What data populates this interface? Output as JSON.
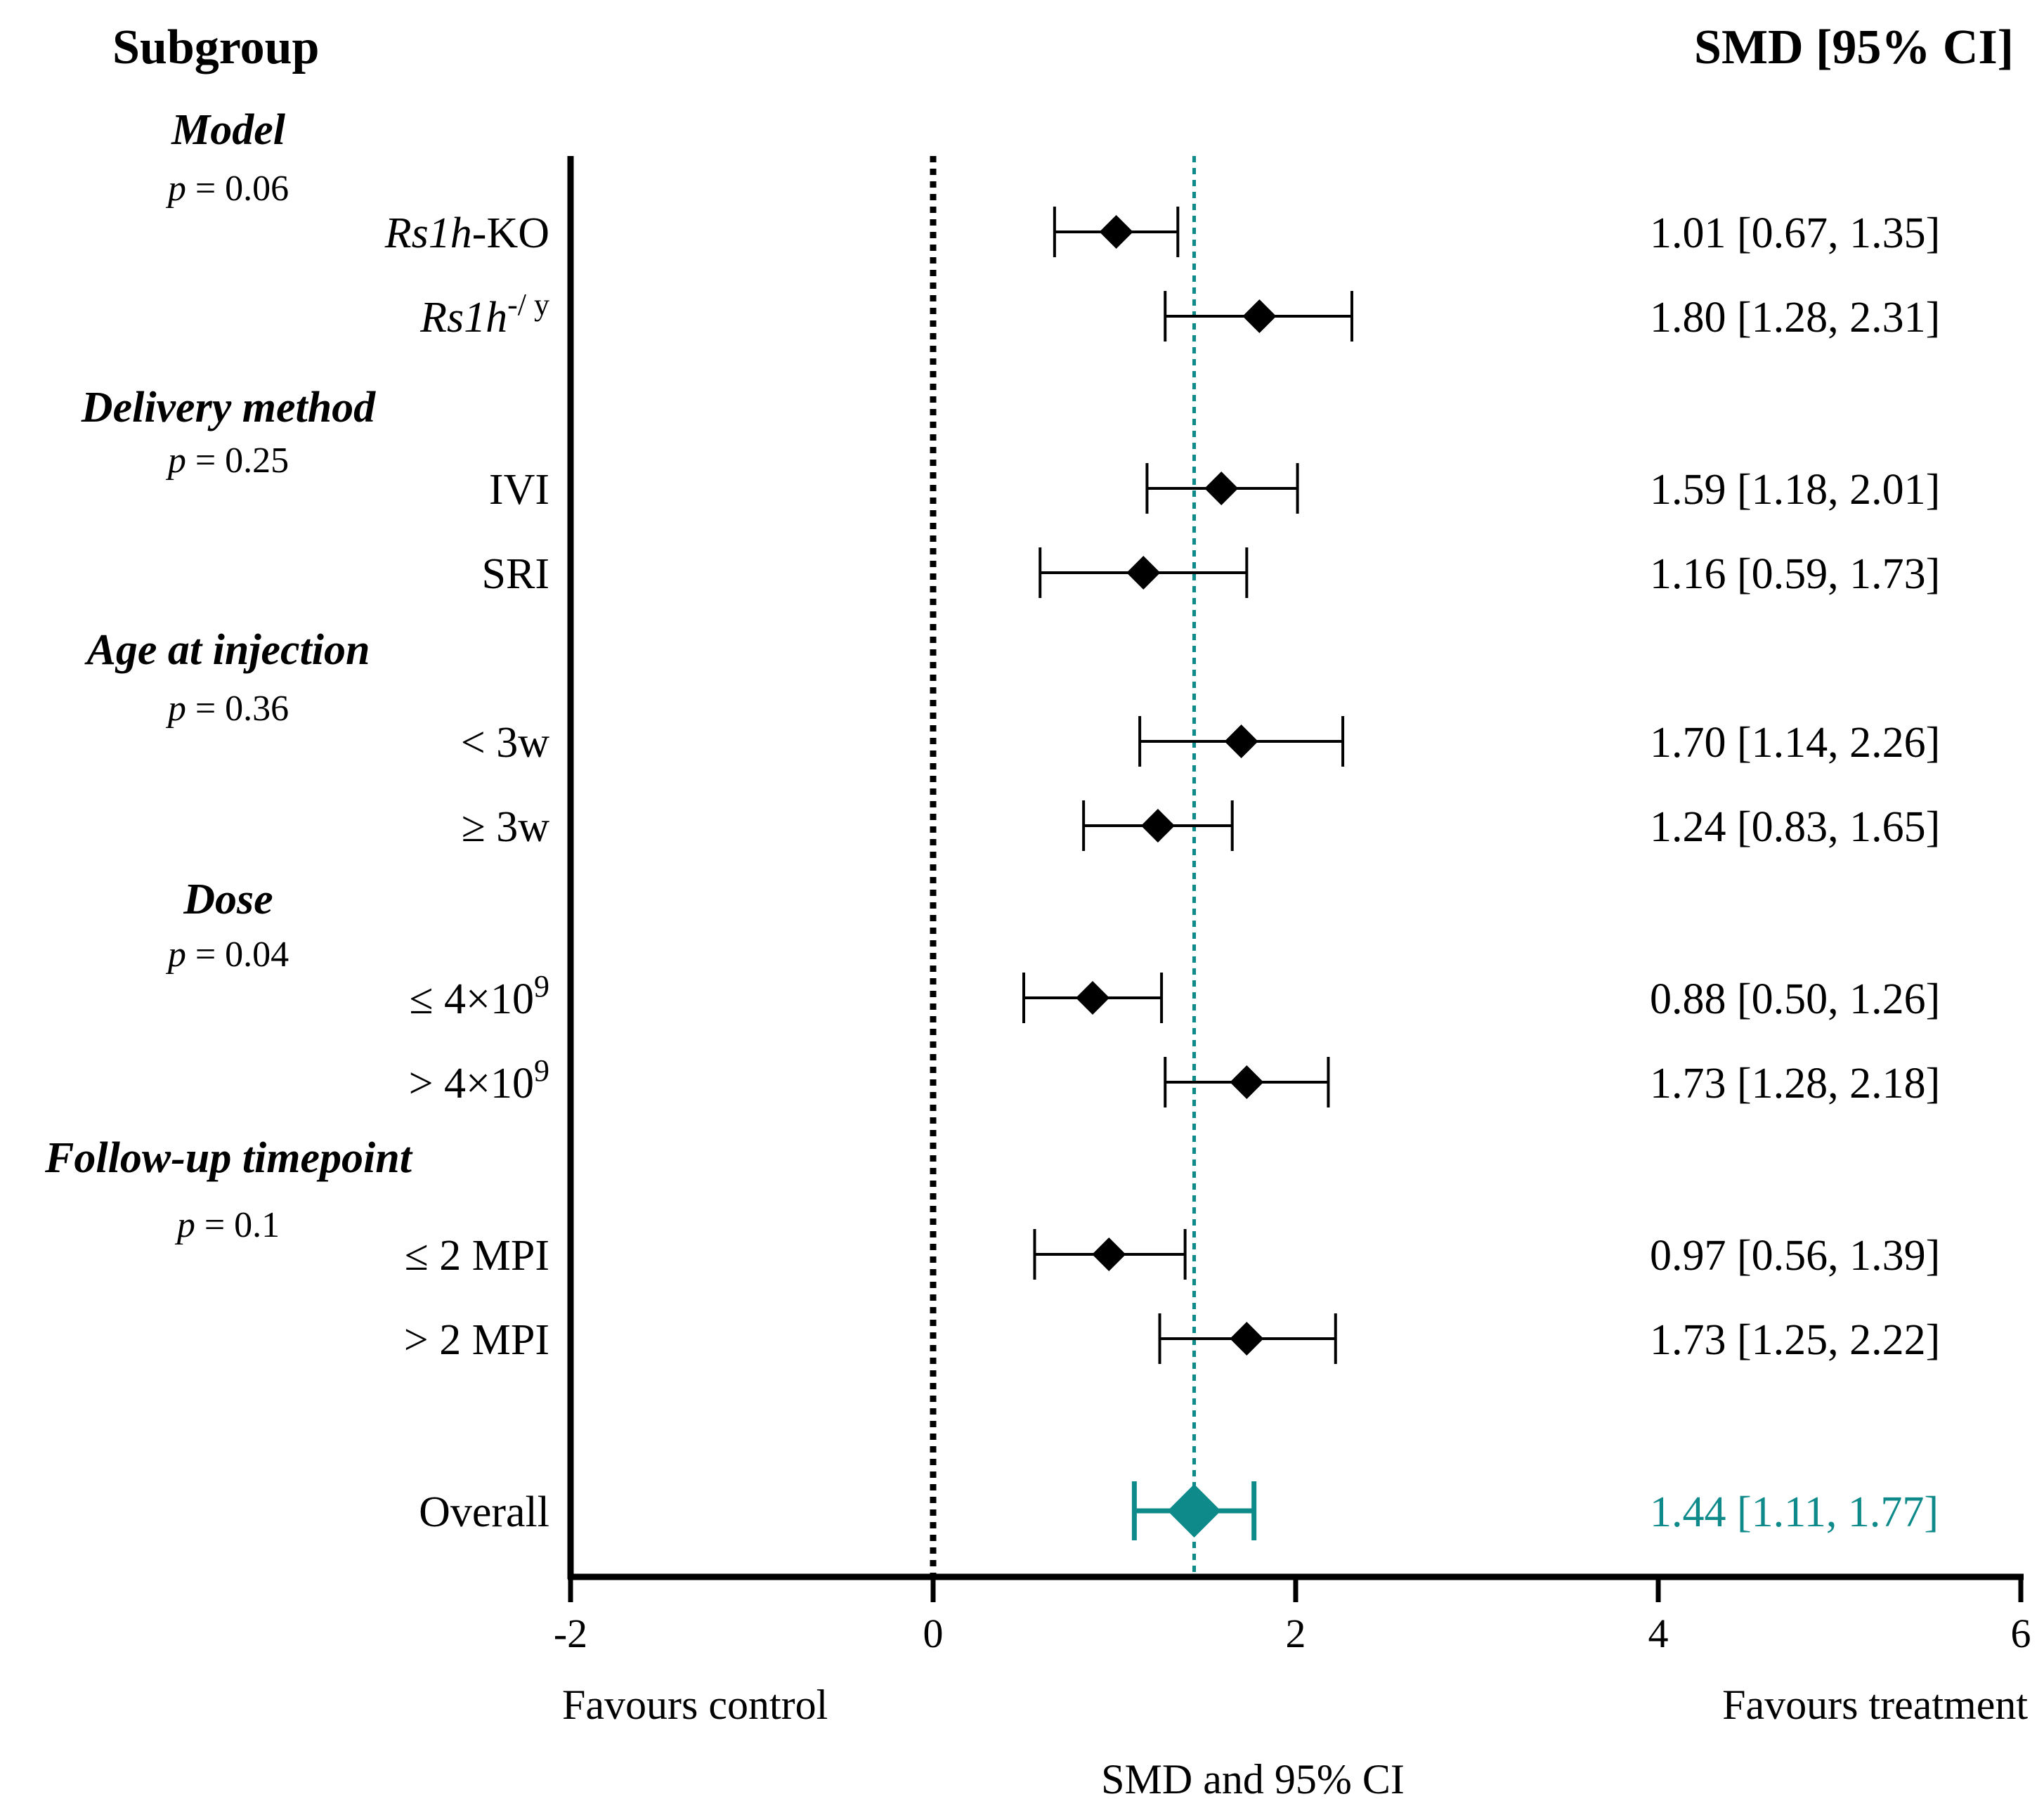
{
  "chart_data": {
    "type": "forest",
    "header_left": "Subgroup",
    "header_right": "SMD [95% CI]",
    "xlabel": "SMD and 95% CI",
    "favours_left": "Favours control",
    "favours_right": "Favours treatment",
    "xlim": [
      -2,
      6
    ],
    "xticks": [
      "-2",
      "0",
      "2",
      "4",
      "6"
    ],
    "null_line": 0,
    "pooled_line": 1.44,
    "colors": {
      "marker": "#000000",
      "overall": "#0f8a8a",
      "axis": "#000000"
    },
    "groups": [
      {
        "title": "Model",
        "p_label": "p",
        "p_value": "= 0.06"
      },
      {
        "title": "Delivery method",
        "p_label": "p",
        "p_value": "= 0.25"
      },
      {
        "title": "Age at injection",
        "p_label": "p",
        "p_value": "= 0.36"
      },
      {
        "title": "Dose",
        "p_label": "p",
        "p_value": "= 0.04"
      },
      {
        "title": "Follow-up timepoint",
        "p_label": "p",
        "p_value": "= 0.1"
      }
    ],
    "rows": [
      {
        "group": 0,
        "label_main": "Rs1h",
        "label_suffix": "-KO",
        "estimate": 1.01,
        "lower": 0.67,
        "upper": 1.35,
        "text": "1.01 [0.67, 1.35]"
      },
      {
        "group": 0,
        "label_main": "Rs1h",
        "label_sup": "-/ y",
        "estimate": 1.8,
        "lower": 1.28,
        "upper": 2.31,
        "text": "1.80 [1.28, 2.31]"
      },
      {
        "group": 1,
        "label": "IVI",
        "estimate": 1.59,
        "lower": 1.18,
        "upper": 2.01,
        "text": "1.59 [1.18, 2.01]"
      },
      {
        "group": 1,
        "label": "SRI",
        "estimate": 1.16,
        "lower": 0.59,
        "upper": 1.73,
        "text": "1.16 [0.59, 1.73]"
      },
      {
        "group": 2,
        "label": "< 3w",
        "estimate": 1.7,
        "lower": 1.14,
        "upper": 2.26,
        "text": "1.70 [1.14, 2.26]"
      },
      {
        "group": 2,
        "label": "≥ 3w",
        "estimate": 1.24,
        "lower": 0.83,
        "upper": 1.65,
        "text": "1.24 [0.83, 1.65]"
      },
      {
        "group": 3,
        "label": "≤ 4×10",
        "label_sup": "9",
        "estimate": 0.88,
        "lower": 0.5,
        "upper": 1.26,
        "text": "0.88 [0.50, 1.26]"
      },
      {
        "group": 3,
        "label": "> 4×10",
        "label_sup": "9",
        "estimate": 1.73,
        "lower": 1.28,
        "upper": 2.18,
        "text": "1.73 [1.28, 2.18]"
      },
      {
        "group": 4,
        "label": "≤ 2 MPI",
        "estimate": 0.97,
        "lower": 0.56,
        "upper": 1.39,
        "text": "0.97 [0.56, 1.39]"
      },
      {
        "group": 4,
        "label": "> 2 MPI",
        "estimate": 1.73,
        "lower": 1.25,
        "upper": 2.22,
        "text": "1.73 [1.25, 2.22]"
      }
    ],
    "overall": {
      "label": "Overall",
      "estimate": 1.44,
      "lower": 1.11,
      "upper": 1.77,
      "text": "1.44 [1.11, 1.77]"
    }
  }
}
